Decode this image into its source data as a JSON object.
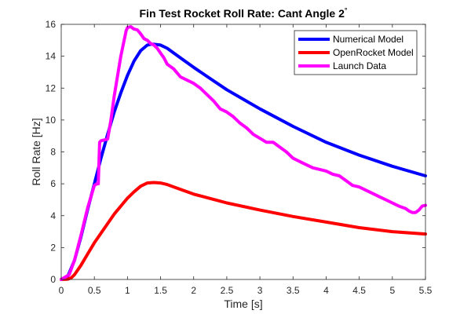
{
  "chart_data": {
    "type": "line",
    "title": "Fin Test Rocket Roll Rate: Cant Angle 2",
    "title_superscript": "°",
    "xlabel": "Time [s]",
    "ylabel": "Roll Rate [Hz]",
    "xlim": [
      0,
      5.5
    ],
    "ylim": [
      0,
      16
    ],
    "xticks": [
      0,
      0.5,
      1,
      1.5,
      2,
      2.5,
      3,
      3.5,
      4,
      4.5,
      5,
      5.5
    ],
    "xtick_labels": [
      "0",
      "0.5",
      "1",
      "1.5",
      "2",
      "2.5",
      "3",
      "3.5",
      "4",
      "4.5",
      "5",
      "5.5"
    ],
    "yticks": [
      0,
      2,
      4,
      6,
      8,
      10,
      12,
      14,
      16
    ],
    "ytick_labels": [
      "0",
      "2",
      "4",
      "6",
      "8",
      "10",
      "12",
      "14",
      "16"
    ],
    "grid": false,
    "legend_position": "top-right",
    "series": [
      {
        "name": "Numerical Model",
        "color": "#0000ff",
        "x": [
          0,
          0.1,
          0.2,
          0.3,
          0.4,
          0.5,
          0.6,
          0.7,
          0.8,
          0.9,
          1.0,
          1.1,
          1.2,
          1.3,
          1.35,
          1.4,
          1.5,
          1.6,
          1.8,
          2.0,
          2.25,
          2.5,
          2.75,
          3.0,
          3.25,
          3.5,
          4.0,
          4.5,
          5.0,
          5.5
        ],
        "y": [
          0,
          0.2,
          1.2,
          2.7,
          4.4,
          6.0,
          7.6,
          9.1,
          10.5,
          11.7,
          12.8,
          13.7,
          14.35,
          14.7,
          14.75,
          14.75,
          14.7,
          14.5,
          13.9,
          13.3,
          12.6,
          11.9,
          11.3,
          10.7,
          10.15,
          9.6,
          8.6,
          7.8,
          7.1,
          6.5
        ]
      },
      {
        "name": "OpenRocket Model",
        "color": "#ff0000",
        "x": [
          0,
          0.1,
          0.15,
          0.2,
          0.3,
          0.4,
          0.5,
          0.6,
          0.7,
          0.8,
          0.9,
          1.0,
          1.1,
          1.2,
          1.3,
          1.4,
          1.5,
          1.6,
          1.8,
          2.0,
          2.5,
          3.0,
          3.5,
          4.0,
          4.5,
          5.0,
          5.5
        ],
        "y": [
          0,
          0.02,
          0.1,
          0.3,
          0.9,
          1.6,
          2.3,
          2.9,
          3.5,
          4.1,
          4.6,
          5.1,
          5.5,
          5.85,
          6.05,
          6.08,
          6.05,
          5.95,
          5.65,
          5.35,
          4.8,
          4.35,
          3.95,
          3.6,
          3.25,
          3.0,
          2.85
        ]
      },
      {
        "name": "Launch Data",
        "color": "#ff00ff",
        "x": [
          0,
          0.12,
          0.2,
          0.3,
          0.4,
          0.5,
          0.54,
          0.56,
          0.58,
          0.6,
          0.65,
          0.7,
          0.75,
          0.8,
          0.9,
          0.98,
          1.0,
          1.05,
          1.1,
          1.15,
          1.2,
          1.25,
          1.3,
          1.35,
          1.4,
          1.45,
          1.5,
          1.55,
          1.6,
          1.7,
          1.8,
          1.9,
          2.0,
          2.1,
          2.2,
          2.3,
          2.4,
          2.5,
          2.6,
          2.7,
          2.8,
          2.9,
          3.0,
          3.1,
          3.2,
          3.3,
          3.4,
          3.5,
          3.6,
          3.7,
          3.8,
          3.9,
          4.0,
          4.1,
          4.2,
          4.3,
          4.4,
          4.5,
          4.6,
          4.7,
          4.8,
          4.9,
          5.0,
          5.1,
          5.2,
          5.25,
          5.3,
          5.35,
          5.4,
          5.45,
          5.5
        ],
        "y": [
          0,
          0.3,
          1.2,
          2.8,
          4.5,
          5.9,
          6.0,
          6.0,
          8.6,
          8.7,
          8.75,
          8.8,
          10.0,
          11.5,
          14.0,
          15.6,
          15.8,
          15.85,
          15.7,
          15.65,
          15.4,
          15.1,
          15.0,
          14.8,
          14.7,
          14.5,
          14.2,
          13.9,
          13.5,
          13.2,
          12.7,
          12.5,
          12.3,
          12.0,
          11.6,
          11.2,
          10.7,
          10.5,
          10.2,
          9.8,
          9.5,
          9.1,
          8.85,
          8.6,
          8.6,
          8.3,
          8.0,
          7.6,
          7.4,
          7.2,
          7.0,
          6.9,
          6.8,
          6.6,
          6.5,
          6.2,
          5.9,
          5.8,
          5.6,
          5.4,
          5.2,
          5.0,
          4.8,
          4.6,
          4.45,
          4.3,
          4.2,
          4.2,
          4.35,
          4.6,
          4.65
        ]
      }
    ]
  }
}
